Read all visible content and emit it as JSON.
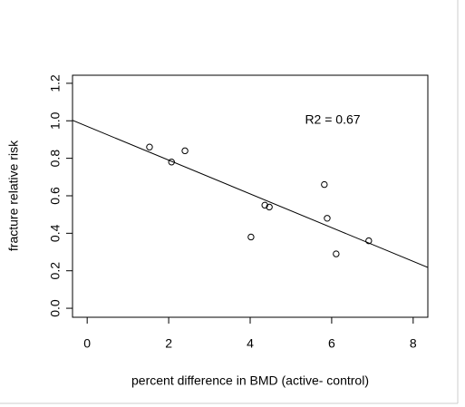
{
  "chart_data": {
    "type": "scatter",
    "x_label": "percent difference in BMD (active- control)",
    "y_label": "fracture relative risk",
    "annotation": "R2 = 0.67",
    "x": [
      1.53,
      2.07,
      2.4,
      4.02,
      4.36,
      4.47,
      5.82,
      5.89,
      6.11,
      6.91
    ],
    "values": [
      0.86,
      0.78,
      0.84,
      0.38,
      0.55,
      0.54,
      0.66,
      0.48,
      0.29,
      0.36
    ],
    "color": "#000000",
    "fit": {
      "intercept": 0.97,
      "slope": -0.09
    },
    "xlim": [
      -0.36,
      8.36
    ],
    "ylim": [
      -0.048,
      1.243
    ],
    "xticks": [
      0,
      2,
      4,
      6,
      8
    ],
    "yticks": [
      {
        "value": 0,
        "label": "0.0"
      },
      {
        "value": 0.2,
        "label": "0.2"
      },
      {
        "value": 0.4,
        "label": "0.4"
      },
      {
        "value": 0.6,
        "label": "0.6"
      },
      {
        "value": 0.8,
        "label": "0.8"
      },
      {
        "value": 1,
        "label": "1.0"
      },
      {
        "value": 1.2,
        "label": "1.2"
      }
    ]
  }
}
